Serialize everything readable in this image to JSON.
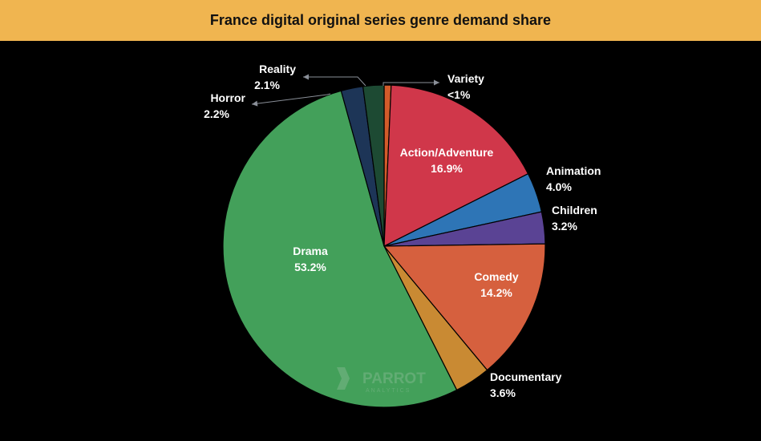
{
  "chart_data": {
    "type": "pie",
    "title": "France digital original series genre demand share",
    "slices": [
      {
        "name": "Variety",
        "value": 0.7,
        "label": "<1%",
        "color": "#d25b2a"
      },
      {
        "name": "Action/Adventure",
        "value": 16.9,
        "label": "16.9%",
        "color": "#d0374a"
      },
      {
        "name": "Animation",
        "value": 4.0,
        "label": "4.0%",
        "color": "#2e75b6"
      },
      {
        "name": "Children",
        "value": 3.2,
        "label": "3.2%",
        "color": "#5a4394"
      },
      {
        "name": "Comedy",
        "value": 14.2,
        "label": "14.2%",
        "color": "#d6603e"
      },
      {
        "name": "Documentary",
        "value": 3.6,
        "label": "3.6%",
        "color": "#c98a33"
      },
      {
        "name": "Drama",
        "value": 53.2,
        "label": "53.2%",
        "color": "#43a05a"
      },
      {
        "name": "Horror",
        "value": 2.2,
        "label": "2.2%",
        "color": "#1d3557"
      },
      {
        "name": "Reality",
        "value": 2.1,
        "label": "2.1%",
        "color": "#1d4a33"
      }
    ],
    "start_angle": "top, clockwise"
  },
  "watermark": {
    "brand": "PARROT",
    "sub": "ANALYTICS"
  }
}
